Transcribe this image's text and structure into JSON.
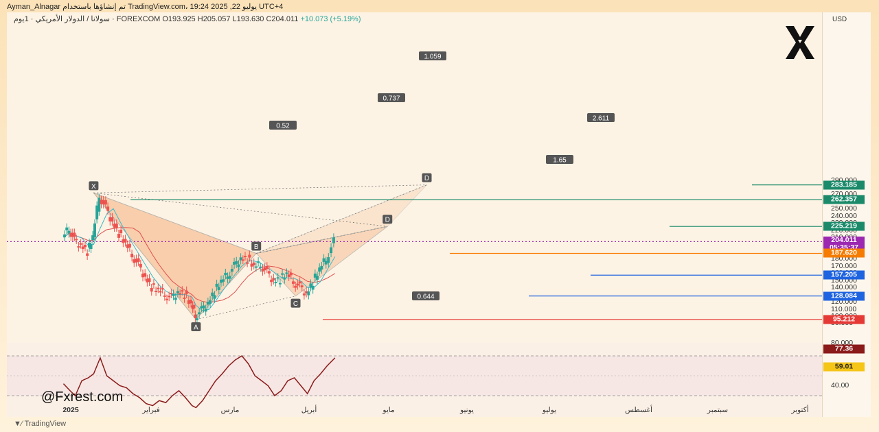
{
  "header": {
    "text": "Ayman_Alnagar تم إنشاؤها باستخدام TradingView.com، يوليو 22, 2025 19:24 UTC+4"
  },
  "ohlc": {
    "symbol": "سولانا / الدولار الأمريكي · 1يوم · FOREXCOM",
    "open": "O193.925",
    "high": "H205.057",
    "low": "L193.630",
    "close": "C204.011",
    "change": "+10.073 (+5.19%)"
  },
  "currency": "USD",
  "footer": {
    "handle": "@Fxrest.com",
    "tv_brand": "TradingView"
  },
  "colors": {
    "up": "#26a69a",
    "down": "#ef5350",
    "ma_fast": "#3cb8c8",
    "ma_slow": "#e05050",
    "pattern_fill": "#f2a36a",
    "rsi_line": "#8b1a1a"
  },
  "chart_data": {
    "type": "line",
    "title": "",
    "xlabel": "",
    "ylabel": "",
    "ylim": [
      80,
      300
    ],
    "x_ticks": [
      "2025",
      "فبراير",
      "مارس",
      "أبريل",
      "مايو",
      "يونيو",
      "يوليو",
      "أغسطس",
      "سبتمبر",
      "أكتوبر"
    ],
    "y_ticks": [
      "90.000",
      "100.000",
      "110.000",
      "120.000",
      "130.000",
      "140.000",
      "150.000",
      "160.000",
      "170.000",
      "180.000",
      "190.000",
      "200.000",
      "210.000",
      "220.000",
      "230.000",
      "240.000",
      "250.000",
      "260.000",
      "270.000",
      "280.000",
      "290.000"
    ],
    "series": [
      {
        "values_x": [
          "2024-12-27",
          "2025-01-01",
          "2025-01-05",
          "2025-01-10",
          "2025-01-15",
          "2025-01-19",
          "2025-01-24",
          "2025-01-29",
          "2025-02-03",
          "2025-02-08",
          "2025-02-13",
          "2025-02-18",
          "2025-02-23",
          "2025-02-28",
          "2025-03-05",
          "2025-03-10",
          "2025-03-15",
          "2025-03-20",
          "2025-03-25",
          "2025-03-30",
          "2025-04-04",
          "2025-04-07",
          "2025-04-12",
          "2025-04-17",
          "2025-04-22",
          "2025-04-27",
          "2025-05-02",
          "2025-05-07",
          "2025-05-12",
          "2025-05-17",
          "2025-05-22",
          "2025-05-27",
          "2025-06-01",
          "2025-06-06",
          "2025-06-11",
          "2025-06-16",
          "2025-06-21",
          "2025-06-26",
          "2025-07-01",
          "2025-07-06",
          "2025-07-11",
          "2025-07-16",
          "2025-07-22"
        ],
        "values_y": [
          210,
          222,
          205,
          200,
          190,
          210,
          268,
          250,
          232,
          215,
          200,
          185,
          170,
          155,
          140,
          135,
          130,
          125,
          135,
          130,
          115,
          100,
          108,
          120,
          135,
          148,
          158,
          170,
          182,
          180,
          168,
          172,
          160,
          150,
          152,
          158,
          148,
          140,
          132,
          148,
          165,
          180,
          204
        ]
      }
    ],
    "harmonic_points": [
      {
        "label": "X",
        "date": "2025-01-19",
        "price": 272
      },
      {
        "label": "A",
        "date": "2025-04-07",
        "price": 95.212
      },
      {
        "label": "B",
        "date": "2025-05-23",
        "price": 187.62
      },
      {
        "label": "C",
        "date": "2025-06-22",
        "price": 128.084
      },
      {
        "label": "D",
        "date": "2025-08-31",
        "price": 225.219
      },
      {
        "label": "D",
        "date": "2025-09-30",
        "price": 283.185
      }
    ],
    "ratios": [
      "1.059",
      "0.737",
      "0.52",
      "2.611",
      "1.65",
      "0.644"
    ],
    "levels": [
      {
        "value": "283.185",
        "color": "#1a8a6a"
      },
      {
        "value": "262.357",
        "color": "#1a8a6a"
      },
      {
        "value": "225.219",
        "color": "#1a8a6a"
      },
      {
        "value": "204.011",
        "color": "#9c27b0",
        "sub": "05:35:37"
      },
      {
        "value": "187.620",
        "color": "#f57c00"
      },
      {
        "value": "157.205",
        "color": "#1e63e0"
      },
      {
        "value": "128.084",
        "color": "#1e63e0"
      },
      {
        "value": "95.212",
        "color": "#e53935"
      }
    ],
    "rsi": {
      "levels": [
        "80.000",
        "40.00"
      ],
      "current": "77.36",
      "ma": "59.01"
    }
  }
}
